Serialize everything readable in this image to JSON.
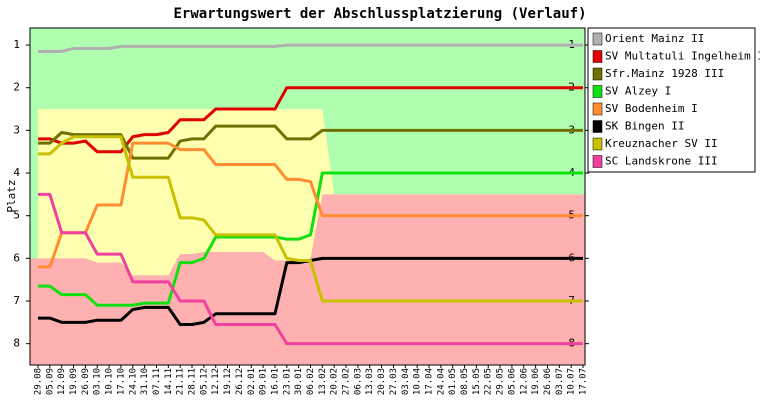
{
  "chart_data": {
    "type": "line",
    "title": "Erwartungswert der Abschlussplatzierung (Verlauf)",
    "y_label": "Platz",
    "categories": [
      "29.08",
      "05.09",
      "12.09",
      "19.09",
      "26.09",
      "03.10",
      "10.10",
      "17.10",
      "24.10",
      "31.10",
      "07.11",
      "14.11",
      "21.11",
      "28.11",
      "05.12",
      "12.12",
      "19.12",
      "26.12",
      "02.01",
      "09.01",
      "16.01",
      "23.01",
      "30.01",
      "06.02",
      "13.02",
      "20.02",
      "27.02",
      "06.03",
      "13.03",
      "20.03",
      "27.03",
      "03.04",
      "10.04",
      "17.04",
      "24.04",
      "01.05",
      "08.05",
      "15.05",
      "22.05",
      "29.05",
      "05.06",
      "12.06",
      "19.06",
      "26.06",
      "03.07",
      "10.07",
      "17.07"
    ],
    "ylim": [
      0.6,
      8.5
    ],
    "y_inverted": true,
    "yticks": [
      1,
      2,
      3,
      4,
      5,
      6,
      7,
      8
    ],
    "plot_background": "#b0ffb0",
    "zones": {
      "yellow_color": "#ffffb0",
      "red_color": "#ffb0b0",
      "yellow_top": [
        2.5,
        2.5,
        2.5,
        2.5,
        2.5,
        2.5,
        2.5,
        2.5,
        2.5,
        2.5,
        2.5,
        2.5,
        2.5,
        2.5,
        2.5,
        2.5,
        2.5,
        2.5,
        2.5,
        2.5,
        2.5,
        2.5,
        2.5,
        2.5,
        2.5,
        4.5,
        4.5,
        4.5,
        4.5,
        4.5,
        4.5,
        4.5,
        4.5,
        4.5,
        4.5,
        4.5,
        4.5,
        4.5,
        4.5,
        4.5,
        4.5,
        4.5,
        4.5,
        4.5,
        4.5,
        4.5,
        4.5
      ],
      "red_top": [
        6.0,
        6.0,
        6.0,
        6.0,
        6.0,
        6.1,
        6.1,
        6.1,
        6.4,
        6.4,
        6.4,
        6.4,
        5.9,
        5.9,
        5.85,
        5.85,
        5.85,
        5.85,
        5.85,
        5.85,
        6.05,
        6.05,
        6.05,
        6.0,
        4.5,
        4.5,
        4.5,
        4.5,
        4.5,
        4.5,
        4.5,
        4.5,
        4.5,
        4.5,
        4.5,
        4.5,
        4.5,
        4.5,
        4.5,
        4.5,
        4.5,
        4.5,
        4.5,
        4.5,
        4.5,
        4.5,
        4.5
      ]
    },
    "series": [
      {
        "name": "Orient Mainz II",
        "color": "#b0b0b0",
        "values": [
          1.15,
          1.15,
          1.15,
          1.08,
          1.08,
          1.08,
          1.08,
          1.03,
          1.03,
          1.03,
          1.03,
          1.03,
          1.03,
          1.03,
          1.03,
          1.03,
          1.03,
          1.03,
          1.03,
          1.03,
          1.03,
          1.0,
          1.0,
          1.0,
          1.0,
          1.0,
          1.0,
          1.0,
          1.0,
          1.0,
          1.0,
          1.0,
          1.0,
          1.0,
          1.0,
          1.0,
          1.0,
          1.0,
          1.0,
          1.0,
          1.0,
          1.0,
          1.0,
          1.0,
          1.0,
          1.0,
          1.0
        ]
      },
      {
        "name": "SV Multatuli Ingelheim I",
        "color": "#e00000",
        "values": [
          3.2,
          3.2,
          3.3,
          3.3,
          3.25,
          3.5,
          3.5,
          3.5,
          3.15,
          3.1,
          3.1,
          3.05,
          2.75,
          2.75,
          2.75,
          2.5,
          2.5,
          2.5,
          2.5,
          2.5,
          2.5,
          2.0,
          2.0,
          2.0,
          2.0,
          2.0,
          2.0,
          2.0,
          2.0,
          2.0,
          2.0,
          2.0,
          2.0,
          2.0,
          2.0,
          2.0,
          2.0,
          2.0,
          2.0,
          2.0,
          2.0,
          2.0,
          2.0,
          2.0,
          2.0,
          2.0,
          2.0
        ]
      },
      {
        "name": "Sfr.Mainz 1928 III",
        "color": "#707000",
        "values": [
          3.3,
          3.3,
          3.05,
          3.1,
          3.1,
          3.1,
          3.1,
          3.1,
          3.65,
          3.65,
          3.65,
          3.65,
          3.25,
          3.2,
          3.2,
          2.9,
          2.9,
          2.9,
          2.9,
          2.9,
          2.9,
          3.2,
          3.2,
          3.2,
          3.0,
          3.0,
          3.0,
          3.0,
          3.0,
          3.0,
          3.0,
          3.0,
          3.0,
          3.0,
          3.0,
          3.0,
          3.0,
          3.0,
          3.0,
          3.0,
          3.0,
          3.0,
          3.0,
          3.0,
          3.0,
          3.0,
          3.0
        ]
      },
      {
        "name": "SV Alzey I",
        "color": "#10e010",
        "values": [
          6.65,
          6.65,
          6.85,
          6.85,
          6.85,
          7.1,
          7.1,
          7.1,
          7.1,
          7.05,
          7.05,
          7.05,
          6.1,
          6.1,
          6.0,
          5.5,
          5.5,
          5.5,
          5.5,
          5.5,
          5.5,
          5.55,
          5.55,
          5.45,
          4.0,
          4.0,
          4.0,
          4.0,
          4.0,
          4.0,
          4.0,
          4.0,
          4.0,
          4.0,
          4.0,
          4.0,
          4.0,
          4.0,
          4.0,
          4.0,
          4.0,
          4.0,
          4.0,
          4.0,
          4.0,
          4.0,
          4.0
        ]
      },
      {
        "name": "SV Bodenheim I",
        "color": "#ff8c30",
        "values": [
          6.2,
          6.2,
          5.4,
          5.4,
          5.4,
          4.75,
          4.75,
          4.75,
          3.3,
          3.3,
          3.3,
          3.3,
          3.45,
          3.45,
          3.45,
          3.8,
          3.8,
          3.8,
          3.8,
          3.8,
          3.8,
          4.15,
          4.15,
          4.2,
          5.0,
          5.0,
          5.0,
          5.0,
          5.0,
          5.0,
          5.0,
          5.0,
          5.0,
          5.0,
          5.0,
          5.0,
          5.0,
          5.0,
          5.0,
          5.0,
          5.0,
          5.0,
          5.0,
          5.0,
          5.0,
          5.0,
          5.0
        ]
      },
      {
        "name": "SK Bingen II",
        "color": "#000000",
        "values": [
          7.4,
          7.4,
          7.5,
          7.5,
          7.5,
          7.45,
          7.45,
          7.45,
          7.2,
          7.15,
          7.15,
          7.15,
          7.55,
          7.55,
          7.5,
          7.3,
          7.3,
          7.3,
          7.3,
          7.3,
          7.3,
          6.1,
          6.1,
          6.05,
          6.0,
          6.0,
          6.0,
          6.0,
          6.0,
          6.0,
          6.0,
          6.0,
          6.0,
          6.0,
          6.0,
          6.0,
          6.0,
          6.0,
          6.0,
          6.0,
          6.0,
          6.0,
          6.0,
          6.0,
          6.0,
          6.0,
          6.0
        ]
      },
      {
        "name": "Kreuznacher SV II",
        "color": "#c8c000",
        "values": [
          3.55,
          3.55,
          3.3,
          3.15,
          3.15,
          3.15,
          3.15,
          3.15,
          4.1,
          4.1,
          4.1,
          4.1,
          5.05,
          5.05,
          5.1,
          5.45,
          5.45,
          5.45,
          5.45,
          5.45,
          5.45,
          6.0,
          6.05,
          6.05,
          7.0,
          7.0,
          7.0,
          7.0,
          7.0,
          7.0,
          7.0,
          7.0,
          7.0,
          7.0,
          7.0,
          7.0,
          7.0,
          7.0,
          7.0,
          7.0,
          7.0,
          7.0,
          7.0,
          7.0,
          7.0,
          7.0,
          7.0
        ]
      },
      {
        "name": "SC Landskrone III",
        "color": "#f040a0",
        "values": [
          4.5,
          4.5,
          5.4,
          5.4,
          5.4,
          5.9,
          5.9,
          5.9,
          6.55,
          6.55,
          6.55,
          6.55,
          7.0,
          7.0,
          7.0,
          7.55,
          7.55,
          7.55,
          7.55,
          7.55,
          7.55,
          8.0,
          8.0,
          8.0,
          8.0,
          8.0,
          8.0,
          8.0,
          8.0,
          8.0,
          8.0,
          8.0,
          8.0,
          8.0,
          8.0,
          8.0,
          8.0,
          8.0,
          8.0,
          8.0,
          8.0,
          8.0,
          8.0,
          8.0,
          8.0,
          8.0,
          8.0
        ]
      }
    ]
  }
}
